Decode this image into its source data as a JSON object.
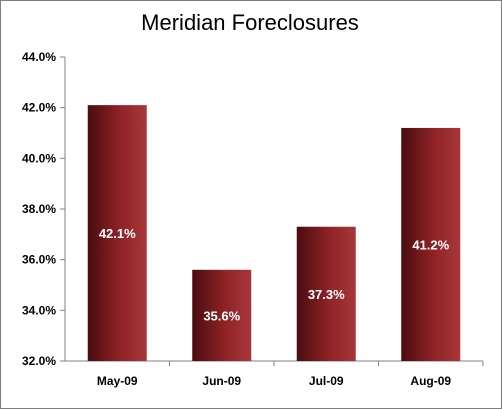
{
  "chart_data": {
    "type": "bar",
    "title": "Meridian Foreclosures",
    "categories": [
      "May-09",
      "Jun-09",
      "Jul-09",
      "Aug-09"
    ],
    "values": [
      42.1,
      35.6,
      37.3,
      41.2
    ],
    "data_labels": [
      "42.1%",
      "35.6%",
      "37.3%",
      "41.2%"
    ],
    "ylim": [
      32.0,
      44.0
    ],
    "yticks": [
      32.0,
      34.0,
      36.0,
      38.0,
      40.0,
      42.0,
      44.0
    ],
    "ytick_labels": [
      "32.0%",
      "34.0%",
      "36.0%",
      "38.0%",
      "40.0%",
      "42.0%",
      "44.0%"
    ],
    "xlabel": "",
    "ylabel": "",
    "grid": false,
    "legend": "none",
    "bar_color_dark": "#4a0c0f",
    "bar_color_mid": "#8f2327",
    "bar_color_light": "#a8373b"
  }
}
